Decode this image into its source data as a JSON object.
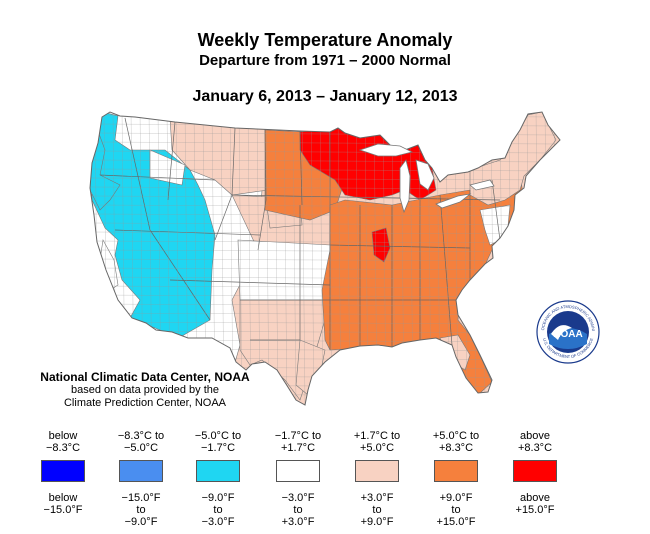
{
  "title": "Weekly Temperature Anomaly",
  "subtitle": "Departure from 1971 – 2000 Normal",
  "date_range": "January 6, 2013 – January 12, 2013",
  "credit": {
    "line1": "National Climatic Data Center, NOAA",
    "line2": "based on data provided by the",
    "line3": "Climate Prediction Center, NOAA"
  },
  "logo": {
    "text": "NOAA",
    "ring_top": "NATIONAL OCEANIC AND ATMOSPHERIC ADMINISTRATION",
    "ring_bottom": "U.S. DEPARTMENT OF COMMERCE",
    "icon": "noaa-logo"
  },
  "legend": [
    {
      "c1": "below",
      "c2": "−8.3°C",
      "f1": "below",
      "f2": "−15.0°F",
      "f3": "",
      "color": "#0000ff"
    },
    {
      "c1": "−8.3°C to",
      "c2": "−5.0°C",
      "f1": "−15.0°F",
      "f2": "to",
      "f3": "−9.0°F",
      "color": "#4a8ef0"
    },
    {
      "c1": "−5.0°C to",
      "c2": "−1.7°C",
      "f1": "−9.0°F",
      "f2": "to",
      "f3": "−3.0°F",
      "color": "#1fd6f2"
    },
    {
      "c1": "−1.7°C to",
      "c2": "+1.7°C",
      "f1": "−3.0°F",
      "f2": "to",
      "f3": "+3.0°F",
      "color": "#ffffff"
    },
    {
      "c1": "+1.7°C to",
      "c2": "+5.0°C",
      "f1": "+3.0°F",
      "f2": "to",
      "f3": "+9.0°F",
      "color": "#f8d2c2"
    },
    {
      "c1": "+5.0°C to",
      "c2": "+8.3°C",
      "f1": "+9.0°F",
      "f2": "to",
      "f3": "+15.0°F",
      "color": "#f5803d"
    },
    {
      "c1": "above",
      "c2": "+8.3°C",
      "f1": "above",
      "f2": "+15.0°F",
      "f3": "",
      "color": "#ff0000"
    }
  ],
  "map_colors": {
    "blue": "#1fd6f2",
    "white": "#ffffff",
    "pink": "#f8d2c2",
    "orange": "#f5803d",
    "red": "#ff0000",
    "outline": "#777777"
  }
}
